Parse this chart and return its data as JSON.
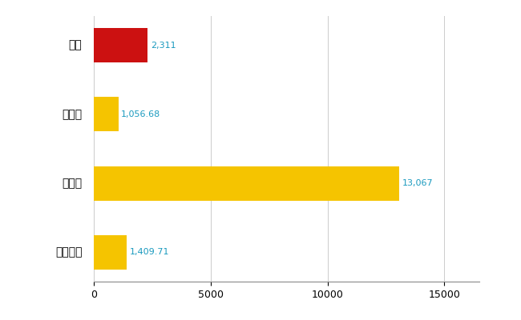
{
  "categories": [
    "泉区",
    "県平均",
    "県最大",
    "全国平均"
  ],
  "values": [
    2311,
    1056.68,
    13067,
    1409.71
  ],
  "bar_colors": [
    "#cc1111",
    "#f5c400",
    "#f5c400",
    "#f5c400"
  ],
  "value_labels": [
    "2,311",
    "1,056.68",
    "13,067",
    "1,409.71"
  ],
  "label_color": "#1a9abf",
  "xlim": [
    0,
    16500
  ],
  "xticks": [
    0,
    5000,
    10000,
    15000
  ],
  "background_color": "#ffffff",
  "bar_height": 0.5,
  "grid_color": "#cccccc"
}
